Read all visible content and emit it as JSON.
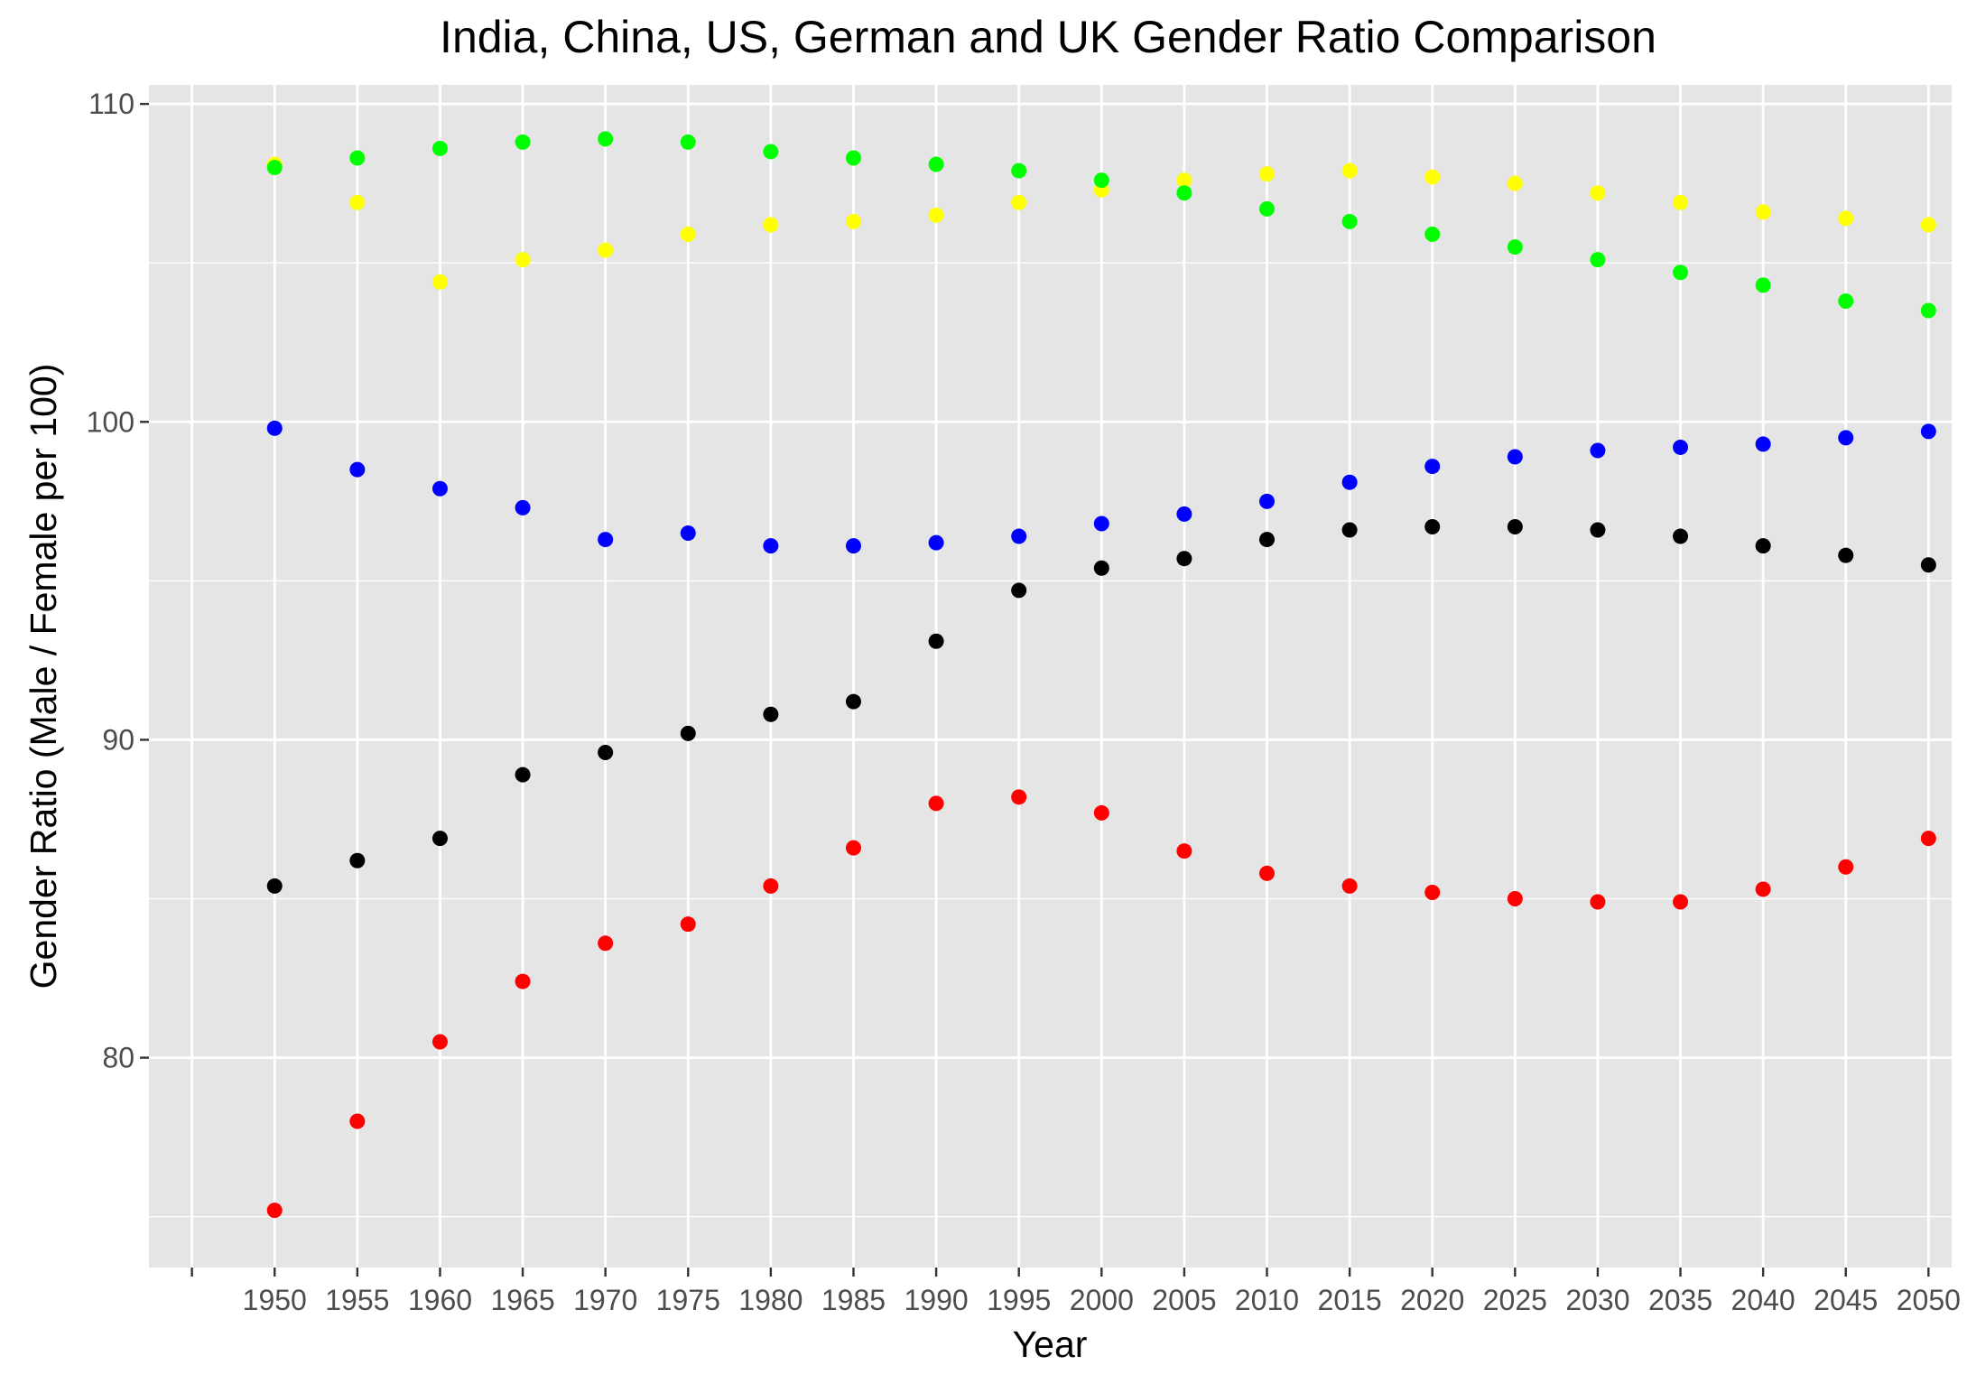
{
  "chart_data": {
    "type": "scatter",
    "title": "India, China, US, German and UK Gender Ratio Comparison",
    "xlabel": "Year",
    "ylabel": "Gender Ratio (Male / Female per 100)",
    "x": [
      1950,
      1955,
      1960,
      1965,
      1970,
      1975,
      1980,
      1985,
      1990,
      1995,
      2000,
      2005,
      2010,
      2015,
      2020,
      2025,
      2030,
      2035,
      2040,
      2045,
      2050
    ],
    "x_tick_labels": [
      "",
      "1950",
      "1955",
      "1960",
      "1965",
      "1970",
      "1975",
      "1980",
      "1985",
      "1990",
      "1995",
      "2000",
      "2005",
      "2010",
      "2015",
      "2020",
      "2025",
      "2030",
      "2035",
      "2040",
      "2045",
      "2050"
    ],
    "y_ticks": [
      80,
      90,
      100,
      110
    ],
    "y_tick_labels": [
      "80",
      "90",
      "100",
      "110"
    ],
    "xlim": [
      1942.4,
      2051.4
    ],
    "ylim": [
      73.4,
      110.6
    ],
    "grid": true,
    "series": [
      {
        "color": "#ffff00",
        "values": [
          108.1,
          106.9,
          104.4,
          105.1,
          105.4,
          105.9,
          106.2,
          106.3,
          106.5,
          106.9,
          107.3,
          107.6,
          107.8,
          107.9,
          107.7,
          107.5,
          107.2,
          106.9,
          106.6,
          106.4,
          106.2
        ]
      },
      {
        "color": "#00ff00",
        "values": [
          108.0,
          108.3,
          108.6,
          108.8,
          108.9,
          108.8,
          108.5,
          108.3,
          108.1,
          107.9,
          107.6,
          107.2,
          106.7,
          106.3,
          105.9,
          105.5,
          105.1,
          104.7,
          104.3,
          103.8,
          103.5
        ]
      },
      {
        "color": "#0000ff",
        "values": [
          99.8,
          98.5,
          97.9,
          97.3,
          96.3,
          96.5,
          96.1,
          96.1,
          96.2,
          96.4,
          96.8,
          97.1,
          97.5,
          98.1,
          98.6,
          98.9,
          99.1,
          99.2,
          99.3,
          99.5,
          99.7
        ]
      },
      {
        "color": "#000000",
        "values": [
          85.4,
          86.2,
          86.9,
          88.9,
          89.6,
          90.2,
          90.8,
          91.2,
          93.1,
          94.7,
          95.4,
          95.7,
          96.3,
          96.6,
          96.7,
          96.7,
          96.6,
          96.4,
          96.1,
          95.8,
          95.5
        ]
      },
      {
        "color": "#ff0000",
        "values": [
          75.2,
          78.0,
          80.5,
          82.4,
          83.6,
          84.2,
          85.4,
          86.6,
          88.0,
          88.2,
          87.7,
          86.5,
          85.8,
          85.4,
          85.2,
          85.0,
          84.9,
          84.9,
          85.3,
          86.0,
          86.9
        ]
      }
    ]
  },
  "colors": {
    "panel_background": "#e5e5e5",
    "gridline": "#ffffff",
    "tick_label": "#4d4d4d"
  }
}
